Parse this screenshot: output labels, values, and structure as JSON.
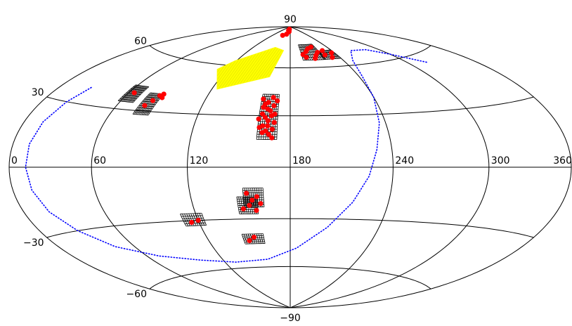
{
  "chart_data": {
    "type": "scatter",
    "title": "",
    "projection": "Hammer-Aitoff (all-sky)",
    "x_range": [
      0,
      360
    ],
    "y_range": [
      -90,
      90
    ],
    "meridian_labels": [
      {
        "value": 0,
        "text": "0"
      },
      {
        "value": 60,
        "text": "60"
      },
      {
        "value": 120,
        "text": "120"
      },
      {
        "value": 180,
        "text": "180"
      },
      {
        "value": 240,
        "text": "240"
      },
      {
        "value": 300,
        "text": "300"
      },
      {
        "value": 360,
        "text": "360"
      }
    ],
    "parallel_labels": [
      {
        "value": 90,
        "text": "90"
      },
      {
        "value": 60,
        "text": "60"
      },
      {
        "value": 30,
        "text": "30"
      },
      {
        "value": -30,
        "text": "−30"
      },
      {
        "value": -60,
        "text": "−60"
      },
      {
        "value": -90,
        "text": "−90"
      }
    ],
    "meridians": [
      0,
      60,
      120,
      180,
      240,
      300,
      360
    ],
    "parallels": [
      -60,
      -30,
      0,
      30,
      60
    ],
    "colors": {
      "grid": "#000000",
      "patches": "#000000",
      "points": "#ff0000",
      "hatched_region": "#ffff00",
      "track": "#0000ff"
    },
    "hatched_region": [
      [
        118,
        63
      ],
      [
        155,
        74
      ],
      [
        170,
        72
      ],
      [
        162,
        54
      ],
      [
        124,
        45
      ],
      [
        110,
        57
      ]
    ],
    "patches": [
      {
        "lon": [
          58,
          70
        ],
        "lat": [
          34,
          43
        ],
        "cols": 11,
        "rows": 8
      },
      {
        "lon": [
          76,
          87
        ],
        "lat": [
          28,
          40
        ],
        "cols": 10,
        "rows": 10
      },
      {
        "lon": [
          160,
          172
        ],
        "lat": [
          16,
          43
        ],
        "cols": 9,
        "rows": 18
      },
      {
        "lon": [
          195,
          221
        ],
        "lat": [
          65,
          76
        ],
        "cols": 12,
        "rows": 6
      },
      {
        "lon": [
          220,
          240
        ],
        "lat": [
          65,
          71
        ],
        "cols": 10,
        "rows": 4
      },
      {
        "lon": [
          148,
          160
        ],
        "lat": [
          -27,
          -17
        ],
        "cols": 10,
        "rows": 8
      },
      {
        "lon": [
          152,
          164
        ],
        "lat": [
          -23,
          -12
        ],
        "cols": 10,
        "rows": 8
      },
      {
        "lon": [
          110,
          124
        ],
        "lat": [
          -33,
          -26
        ],
        "cols": 10,
        "rows": 5
      },
      {
        "lon": [
          146,
          161
        ],
        "lat": [
          -45,
          -39
        ],
        "cols": 10,
        "rows": 5
      }
    ],
    "points": [
      [
        64,
        39
      ],
      [
        80,
        33
      ],
      [
        83,
        36
      ],
      [
        85,
        39
      ],
      [
        87,
        40
      ],
      [
        88,
        38
      ],
      [
        161,
        40
      ],
      [
        163,
        37
      ],
      [
        165,
        34
      ],
      [
        162,
        31
      ],
      [
        167,
        33
      ],
      [
        169,
        36
      ],
      [
        164,
        29
      ],
      [
        166,
        27
      ],
      [
        168,
        30
      ],
      [
        170,
        26
      ],
      [
        163,
        24
      ],
      [
        165,
        21
      ],
      [
        167,
        19
      ],
      [
        169,
        22
      ],
      [
        171,
        39
      ],
      [
        162,
        35
      ],
      [
        168,
        41
      ],
      [
        165,
        38
      ],
      [
        160,
        28
      ],
      [
        170,
        31
      ],
      [
        163,
        20
      ],
      [
        166,
        24
      ],
      [
        161,
        23
      ],
      [
        169,
        17
      ],
      [
        153,
        83
      ],
      [
        167,
        87
      ],
      [
        171,
        87
      ],
      [
        173,
        86
      ],
      [
        170,
        88
      ],
      [
        165,
        84
      ],
      [
        197,
        69
      ],
      [
        203,
        71
      ],
      [
        208,
        73
      ],
      [
        213,
        68
      ],
      [
        215,
        74
      ],
      [
        218,
        70
      ],
      [
        200,
        67
      ],
      [
        210,
        66
      ],
      [
        225,
        68
      ],
      [
        231,
        66
      ],
      [
        236,
        69
      ],
      [
        227,
        71
      ],
      [
        151,
        -24
      ],
      [
        155,
        -22
      ],
      [
        157,
        -19
      ],
      [
        160,
        -17
      ],
      [
        162,
        -21
      ],
      [
        159,
        -25
      ],
      [
        154,
        -15
      ],
      [
        115,
        -31
      ],
      [
        120,
        -30
      ],
      [
        150,
        -43
      ],
      [
        154,
        -41
      ]
    ],
    "track": [
      [
        26,
        38
      ],
      [
        20,
        30
      ],
      [
        15,
        20
      ],
      [
        13,
        10
      ],
      [
        13,
        0
      ],
      [
        15,
        -10
      ],
      [
        20,
        -20
      ],
      [
        30,
        -30
      ],
      [
        45,
        -40
      ],
      [
        70,
        -48
      ],
      [
        100,
        -53
      ],
      [
        130,
        -56
      ],
      [
        160,
        -55
      ],
      [
        185,
        -48
      ],
      [
        205,
        -35
      ],
      [
        218,
        -20
      ],
      [
        226,
        -5
      ],
      [
        231,
        10
      ],
      [
        236,
        25
      ],
      [
        240,
        40
      ],
      [
        243,
        53
      ],
      [
        250,
        63
      ],
      [
        265,
        69
      ],
      [
        285,
        68
      ],
      [
        300,
        63
      ],
      [
        318,
        55
      ]
    ]
  }
}
